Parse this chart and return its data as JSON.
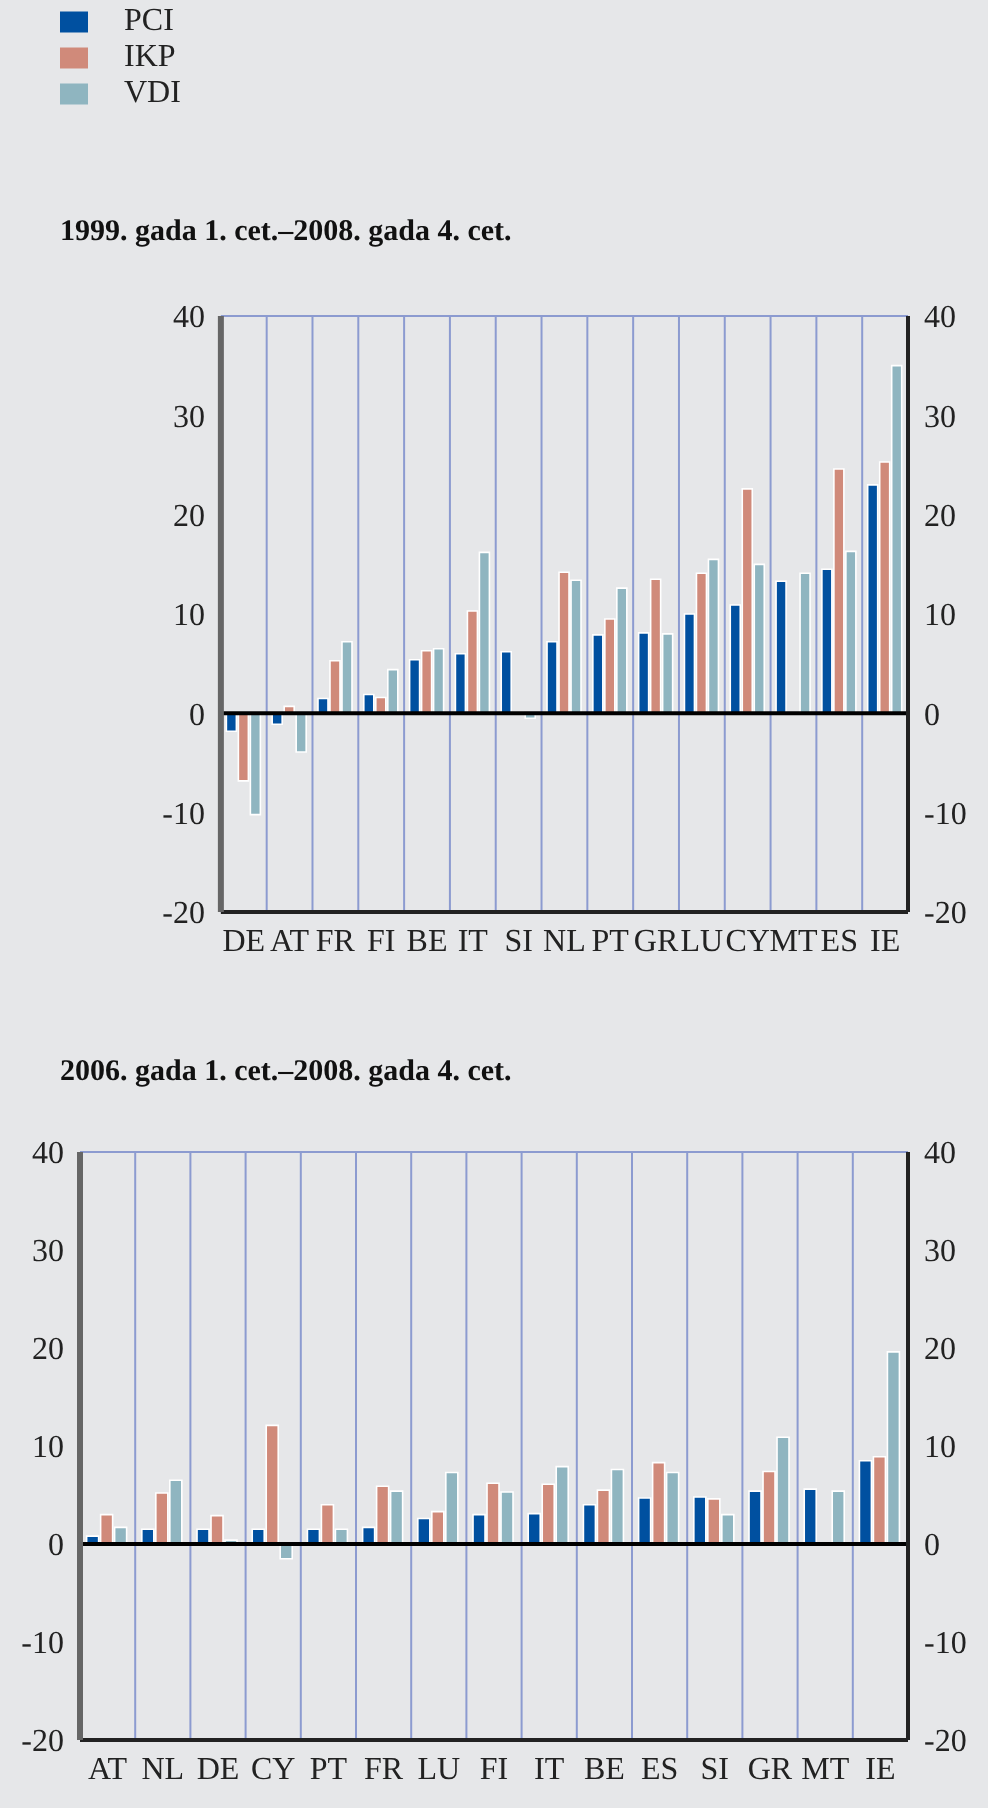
{
  "chart_data": [
    {
      "type": "bar",
      "title": "1999. gada 1. cet.–2008. gada 4. cet.",
      "categories": [
        "DE",
        "AT",
        "FR",
        "FI",
        "BE",
        "IT",
        "SI",
        "NL",
        "PT",
        "GR",
        "LU",
        "CY",
        "MT",
        "ES",
        "IE"
      ],
      "series": [
        {
          "name": "PCI",
          "color": "#0050a0",
          "values": [
            -1.8,
            -1.1,
            1.5,
            1.9,
            5.4,
            6.0,
            6.2,
            7.2,
            7.9,
            8.1,
            10.0,
            10.9,
            13.3,
            14.5,
            23.0
          ]
        },
        {
          "name": "IKP",
          "color": "#d08a7a",
          "values": [
            -6.8,
            0.7,
            5.3,
            1.6,
            6.3,
            10.3,
            0.1,
            14.2,
            9.5,
            13.5,
            14.1,
            22.6,
            null,
            24.6,
            25.3
          ]
        },
        {
          "name": "VDI",
          "color": "#8fb5c0",
          "values": [
            -10.2,
            -3.9,
            7.2,
            4.4,
            6.5,
            16.2,
            -0.5,
            13.4,
            12.6,
            8.0,
            15.5,
            15.0,
            14.1,
            16.3,
            35.0
          ]
        }
      ],
      "ylim": [
        -20,
        40
      ],
      "yticks": [
        -20,
        -10,
        0,
        10,
        20,
        30,
        40
      ],
      "y2lim": [
        -20,
        40
      ],
      "y2ticks": [
        -20,
        -10,
        0,
        10,
        20,
        30,
        40
      ],
      "grid": true,
      "legend": "top left",
      "ref_lines": [
        {
          "axis": "y",
          "value": 0,
          "color": "#000000"
        }
      ]
    },
    {
      "type": "bar",
      "title": "2006. gada 1. cet.–2008. gada 4. cet.",
      "categories": [
        "AT",
        "NL",
        "DE",
        "CY",
        "PT",
        "FR",
        "LU",
        "FI",
        "IT",
        "BE",
        "ES",
        "SI",
        "GR",
        "MT",
        "IE"
      ],
      "series": [
        {
          "color": "#0050a0",
          "values": [
            0.8,
            1.5,
            1.5,
            1.5,
            1.5,
            1.7,
            2.6,
            3.0,
            3.1,
            4.0,
            4.7,
            4.8,
            5.4,
            5.6,
            8.5
          ]
        },
        {
          "color": "#d08a7a",
          "values": [
            3.0,
            5.2,
            2.9,
            12.1,
            4.0,
            5.9,
            3.3,
            6.2,
            6.1,
            5.5,
            8.3,
            4.6,
            7.4,
            null,
            8.9
          ]
        },
        {
          "color": "#8fb5c0",
          "values": [
            1.7,
            6.5,
            0.4,
            -1.5,
            1.5,
            5.4,
            7.3,
            5.3,
            7.9,
            7.6,
            7.3,
            3.0,
            10.9,
            5.4,
            19.6
          ]
        }
      ],
      "ylim": [
        -20,
        40
      ],
      "yticks": [
        -20,
        -10,
        0,
        10,
        20,
        30,
        40
      ],
      "y2lim": [
        -20,
        40
      ],
      "y2ticks": [
        -20,
        -10,
        0,
        10,
        20,
        30,
        40
      ],
      "grid": true,
      "legend": false,
      "ref_lines": [
        {
          "axis": "y",
          "value": 0,
          "color": "#000000"
        }
      ]
    }
  ]
}
